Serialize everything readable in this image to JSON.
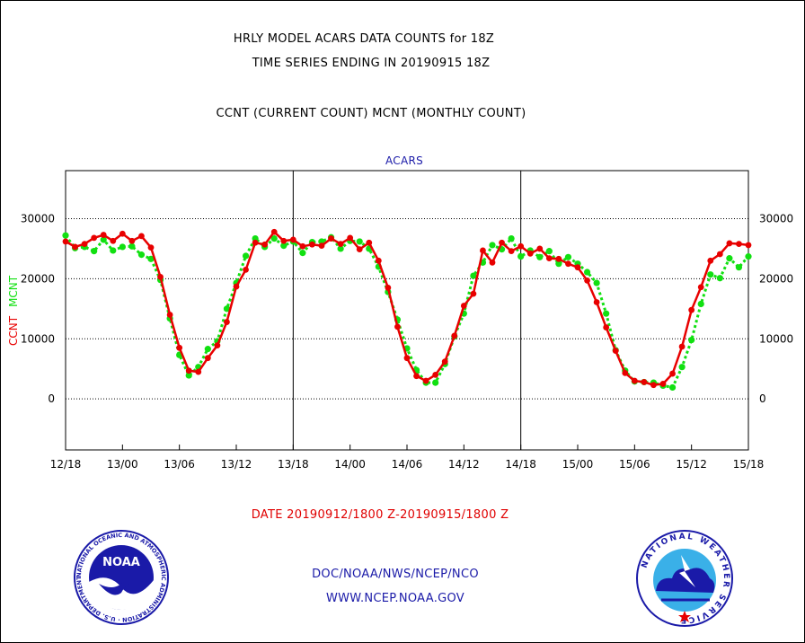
{
  "header": {
    "title_line1": "HRLY MODEL ACARS DATA COUNTS for 18Z",
    "title_line2": "TIME SERIES ENDING IN 20190915 18Z",
    "subtitle": "CCNT (CURRENT COUNT) MCNT (MONTHLY COUNT)"
  },
  "footer": {
    "date_range": "DATE 20190912/1800 Z-20190915/1800 Z",
    "credit": "DOC/NOAA/NWS/NCEP/NCO",
    "website": "WWW.NCEP.NOAA.GOV"
  },
  "logos": {
    "left": {
      "name": "noaa-logo",
      "text": "NOAA",
      "ring_text": "NATIONAL OCEANIC AND ATMOSPHERIC ADMINISTRATION · U.S. DEPARTMENT OF COMMERCE"
    },
    "right": {
      "name": "nws-logo",
      "ring_text": "NATIONAL WEATHER SERVICE"
    }
  },
  "colors": {
    "ccnt": "#e80000",
    "mcnt": "#11e011",
    "label_blue": "#1a1aa8",
    "grid": "#000000"
  },
  "chart_data": {
    "type": "line",
    "panel_label": "ACARS",
    "ylabel_ccnt": "CCNT",
    "ylabel_mcnt": "MCNT",
    "xlabel": "",
    "ylim": [
      -8500,
      38000
    ],
    "yticks": [
      0,
      10000,
      20000,
      30000
    ],
    "grid": "horizontal dotted at y ticks, vertical solid day separators",
    "x_tick_labels": [
      "12/18",
      "13/00",
      "13/06",
      "13/12",
      "13/18",
      "14/00",
      "14/06",
      "14/12",
      "14/18",
      "15/00",
      "15/06",
      "15/12",
      "15/18"
    ],
    "x_hours": [
      0,
      1,
      2,
      3,
      4,
      5,
      6,
      7,
      8,
      9,
      10,
      11,
      12,
      13,
      14,
      15,
      16,
      17,
      18,
      19,
      20,
      21,
      22,
      23,
      24,
      25,
      26,
      27,
      28,
      29,
      30,
      31,
      32,
      33,
      34,
      35,
      36,
      37,
      38,
      39,
      40,
      41,
      42,
      43,
      44,
      45,
      46,
      47,
      48,
      49,
      50,
      51,
      52,
      53,
      54,
      55,
      56,
      57,
      58,
      59,
      60,
      61,
      62,
      63,
      64,
      65,
      66,
      67,
      68,
      69,
      70,
      71,
      72
    ],
    "series": [
      {
        "name": "CCNT",
        "values": [
          26200,
          25300,
          25800,
          26800,
          27300,
          26300,
          27500,
          26300,
          27100,
          25200,
          20300,
          14000,
          8500,
          4700,
          4500,
          6800,
          8900,
          12800,
          18700,
          21500,
          26000,
          25700,
          27800,
          26300,
          26500,
          25400,
          25700,
          25500,
          26700,
          25800,
          26800,
          24900,
          26000,
          23000,
          18500,
          12000,
          6800,
          3800,
          3000,
          4000,
          6200,
          10500,
          15500,
          17500,
          24700,
          22700,
          26000,
          24600,
          25400,
          24200,
          25000,
          23400,
          23300,
          22500,
          21900,
          19700,
          16100,
          11900,
          8000,
          4300,
          3000,
          2800,
          2300,
          2500,
          4200,
          8700,
          14800,
          18600,
          23000,
          24100,
          25900,
          25800,
          25600
        ]
      },
      {
        "name": "MCNT",
        "values": [
          27200,
          25100,
          25300,
          24600,
          26500,
          24700,
          25300,
          25400,
          24000,
          23300,
          19800,
          13400,
          7300,
          3900,
          5300,
          8300,
          9600,
          15000,
          19300,
          23800,
          26700,
          25300,
          26700,
          25500,
          26200,
          24300,
          26100,
          26200,
          26900,
          25000,
          26300,
          26200,
          25000,
          22000,
          17800,
          13200,
          8400,
          4800,
          2700,
          2700,
          5800,
          10400,
          14200,
          20500,
          22700,
          25600,
          24900,
          26700,
          23700,
          24700,
          23600,
          24600,
          22500,
          23600,
          22500,
          21100,
          19300,
          14200,
          8100,
          4700,
          2900,
          2800,
          2700,
          2200,
          1900,
          5300,
          9800,
          15800,
          20700,
          20100,
          23400,
          21900,
          23700
        ]
      }
    ]
  }
}
